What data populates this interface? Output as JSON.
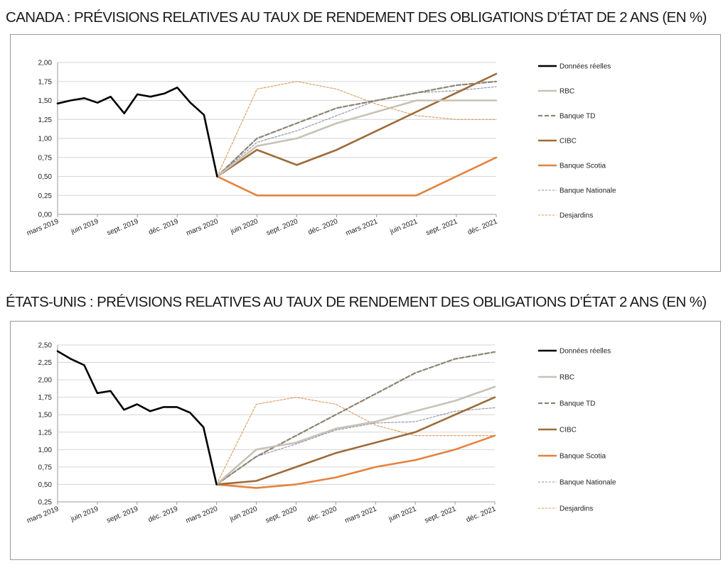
{
  "chart_data": [
    {
      "type": "line",
      "title": "CANADA : PRÉVISIONS RELATIVES AU TAUX DE RENDEMENT DES OBLIGATIONS D’ÉTAT DE 2 ANS (EN %)",
      "xlabel": "",
      "ylabel": "",
      "ylim": [
        0,
        2
      ],
      "yticks": [
        "0,00",
        "0,25",
        "0,50",
        "0,75",
        "1,00",
        "1,25",
        "1,50",
        "1,75",
        "2,00"
      ],
      "x_tick_labels": [
        "mars 2019",
        "juin 2019",
        "sept. 2019",
        "déc. 2019",
        "mars 2020",
        "juin 2020",
        "sept. 2020",
        "déc. 2020",
        "mars 2021",
        "juin 2021",
        "sept. 2021",
        "déc. 2021"
      ],
      "grid": true,
      "legend_position": "right",
      "series": [
        {
          "name": "Données réelles",
          "color": "#000000",
          "style": "solid-thick",
          "points": [
            [
              0,
              1.46
            ],
            [
              0.33,
              1.5
            ],
            [
              0.67,
              1.53
            ],
            [
              1,
              1.47
            ],
            [
              1.33,
              1.55
            ],
            [
              1.67,
              1.33
            ],
            [
              2,
              1.58
            ],
            [
              2.33,
              1.55
            ],
            [
              2.67,
              1.59
            ],
            [
              3,
              1.67
            ],
            [
              3.33,
              1.47
            ],
            [
              3.67,
              1.31
            ],
            [
              4,
              0.5
            ]
          ]
        },
        {
          "name": "RBC",
          "color": "#c8c2b6",
          "style": "solid-thick",
          "points": [
            [
              4,
              0.5
            ],
            [
              5,
              0.9
            ],
            [
              6,
              1.0
            ],
            [
              7,
              1.2
            ],
            [
              8,
              1.35
            ],
            [
              9,
              1.5
            ],
            [
              10,
              1.5
            ],
            [
              11,
              1.5
            ]
          ]
        },
        {
          "name": "Banque TD",
          "color": "#8c8474",
          "style": "dashed-thick",
          "points": [
            [
              4,
              0.5
            ],
            [
              5,
              1.0
            ],
            [
              6,
              1.2
            ],
            [
              7,
              1.4
            ],
            [
              8,
              1.5
            ],
            [
              9,
              1.6
            ],
            [
              10,
              1.7
            ],
            [
              11,
              1.75
            ]
          ]
        },
        {
          "name": "CIBC",
          "color": "#9e6a38",
          "style": "solid-thick",
          "points": [
            [
              4,
              0.5
            ],
            [
              5,
              0.85
            ],
            [
              6,
              0.65
            ],
            [
              7,
              0.85
            ],
            [
              8,
              1.1
            ],
            [
              9,
              1.35
            ],
            [
              10,
              1.6
            ],
            [
              11,
              1.85
            ]
          ]
        },
        {
          "name": "Banque Scotia",
          "color": "#e5823e",
          "style": "solid-thick",
          "points": [
            [
              4,
              0.5
            ],
            [
              5,
              0.25
            ],
            [
              6,
              0.25
            ],
            [
              7,
              0.25
            ],
            [
              8,
              0.25
            ],
            [
              9,
              0.25
            ],
            [
              10,
              0.5
            ],
            [
              11,
              0.75
            ]
          ]
        },
        {
          "name": "Banque Nationale",
          "color": "#8a8fa6",
          "style": "dashed-thin",
          "points": [
            [
              4,
              0.5
            ],
            [
              5,
              0.95
            ],
            [
              6,
              1.1
            ],
            [
              7,
              1.3
            ],
            [
              8,
              1.5
            ],
            [
              9,
              1.6
            ],
            [
              10,
              1.63
            ],
            [
              11,
              1.68
            ]
          ]
        },
        {
          "name": "Desjardins",
          "color": "#d99a5a",
          "style": "dashed-thin",
          "points": [
            [
              4,
              0.5
            ],
            [
              5,
              1.65
            ],
            [
              6,
              1.75
            ],
            [
              7,
              1.65
            ],
            [
              8,
              1.45
            ],
            [
              9,
              1.3
            ],
            [
              10,
              1.25
            ],
            [
              11,
              1.25
            ]
          ]
        }
      ]
    },
    {
      "type": "line",
      "title": "ÉTATS-UNIS : PRÉVISIONS RELATIVES AU TAUX DE RENDEMENT DES OBLIGATIONS D’ÉTAT 2 ANS (EN %)",
      "xlabel": "",
      "ylabel": "",
      "ylim": [
        0.25,
        2.5
      ],
      "yticks": [
        "0,25",
        "0,50",
        "0,75",
        "1,00",
        "1,25",
        "1,50",
        "1,75",
        "2,00",
        "2,25",
        "2,50"
      ],
      "x_tick_labels": [
        "mars 2019",
        "juin 2019",
        "sept. 2019",
        "déc. 2019",
        "mars 2020",
        "juin 2020",
        "sept. 2020",
        "déc. 2020",
        "mars 2021",
        "juin 2021",
        "sept. 2021",
        "déc. 2021"
      ],
      "grid": true,
      "legend_position": "right",
      "series": [
        {
          "name": "Données réelles",
          "color": "#000000",
          "style": "solid-thick",
          "points": [
            [
              0,
              2.41
            ],
            [
              0.33,
              2.3
            ],
            [
              0.67,
              2.21
            ],
            [
              1,
              1.81
            ],
            [
              1.33,
              1.84
            ],
            [
              1.67,
              1.57
            ],
            [
              2,
              1.65
            ],
            [
              2.33,
              1.55
            ],
            [
              2.67,
              1.61
            ],
            [
              3,
              1.61
            ],
            [
              3.33,
              1.53
            ],
            [
              3.67,
              1.32
            ],
            [
              4,
              0.5
            ]
          ]
        },
        {
          "name": "RBC",
          "color": "#c8c2b6",
          "style": "solid-thick",
          "points": [
            [
              4,
              0.5
            ],
            [
              5,
              1.0
            ],
            [
              6,
              1.1
            ],
            [
              7,
              1.3
            ],
            [
              8,
              1.4
            ],
            [
              9,
              1.55
            ],
            [
              10,
              1.7
            ],
            [
              11,
              1.9
            ]
          ]
        },
        {
          "name": "Banque TD",
          "color": "#8c8474",
          "style": "dashed-thick",
          "points": [
            [
              4,
              0.5
            ],
            [
              5,
              0.9
            ],
            [
              6,
              1.2
            ],
            [
              7,
              1.5
            ],
            [
              8,
              1.8
            ],
            [
              9,
              2.1
            ],
            [
              10,
              2.3
            ],
            [
              11,
              2.4
            ]
          ]
        },
        {
          "name": "CIBC",
          "color": "#9e6a38",
          "style": "solid-thick",
          "points": [
            [
              4,
              0.5
            ],
            [
              5,
              0.55
            ],
            [
              6,
              0.75
            ],
            [
              7,
              0.95
            ],
            [
              8,
              1.1
            ],
            [
              9,
              1.25
            ],
            [
              10,
              1.5
            ],
            [
              11,
              1.75
            ]
          ]
        },
        {
          "name": "Banque Scotia",
          "color": "#e5823e",
          "style": "solid-thick",
          "points": [
            [
              4,
              0.5
            ],
            [
              5,
              0.45
            ],
            [
              6,
              0.5
            ],
            [
              7,
              0.6
            ],
            [
              8,
              0.75
            ],
            [
              9,
              0.85
            ],
            [
              10,
              1.0
            ],
            [
              11,
              1.2
            ]
          ]
        },
        {
          "name": "Banque Nationale",
          "color": "#8a8fa6",
          "style": "dashed-thin",
          "points": [
            [
              4,
              0.5
            ],
            [
              5,
              0.9
            ],
            [
              6,
              1.08
            ],
            [
              7,
              1.28
            ],
            [
              8,
              1.38
            ],
            [
              9,
              1.4
            ],
            [
              10,
              1.55
            ],
            [
              11,
              1.6
            ]
          ]
        },
        {
          "name": "Desjardins",
          "color": "#d99a5a",
          "style": "dashed-thin",
          "points": [
            [
              4,
              0.5
            ],
            [
              5,
              1.65
            ],
            [
              6,
              1.75
            ],
            [
              7,
              1.65
            ],
            [
              8,
              1.35
            ],
            [
              9,
              1.2
            ],
            [
              10,
              1.2
            ],
            [
              11,
              1.2
            ]
          ]
        }
      ]
    }
  ]
}
